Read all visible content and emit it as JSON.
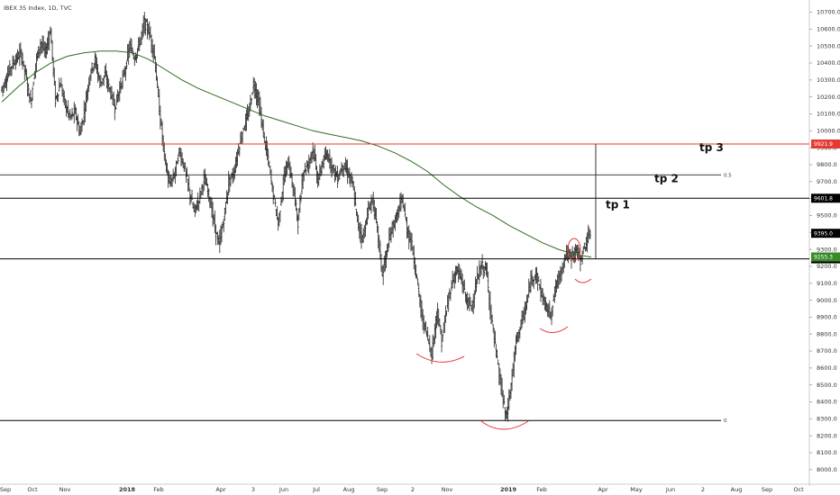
{
  "chart_data": {
    "type": "candlestick",
    "title": "IBEX 35 Index, 1D, TVC",
    "y_axis": {
      "ticks": [
        "10700.0",
        "10600.0",
        "10500.0",
        "10400.0",
        "10300.0",
        "10200.0",
        "10100.0",
        "10000.0",
        "9900.0",
        "9800.0",
        "9700.0",
        "9600.0",
        "9500.0",
        "9400.0",
        "9300.0",
        "9200.0",
        "9100.0",
        "9000.0",
        "8900.0",
        "8800.0",
        "8700.0",
        "8600.0",
        "8500.0",
        "8400.0",
        "8300.0",
        "8200.0",
        "8100.0",
        "8000.0"
      ],
      "ylim": [
        7930,
        10740
      ]
    },
    "x_axis": {
      "ticks": [
        {
          "label": "Sep",
          "bold": false
        },
        {
          "label": "Oct",
          "bold": false
        },
        {
          "label": "Nov",
          "bold": false
        },
        {
          "label": "2018",
          "bold": true
        },
        {
          "label": "Feb",
          "bold": false
        },
        {
          "label": "Apr",
          "bold": false
        },
        {
          "label": "3",
          "bold": false
        },
        {
          "label": "Jun",
          "bold": false
        },
        {
          "label": "Jul",
          "bold": false
        },
        {
          "label": "Aug",
          "bold": false
        },
        {
          "label": "Sep",
          "bold": false
        },
        {
          "label": "2",
          "bold": false
        },
        {
          "label": "Nov",
          "bold": false
        },
        {
          "label": "2019",
          "bold": true
        },
        {
          "label": "Feb",
          "bold": false
        },
        {
          "label": "Apr",
          "bold": false
        },
        {
          "label": "May",
          "bold": false
        },
        {
          "label": "Jun",
          "bold": false
        },
        {
          "label": "2",
          "bold": false
        },
        {
          "label": "Aug",
          "bold": false
        },
        {
          "label": "Sep",
          "bold": false
        },
        {
          "label": "Oct",
          "bold": false
        }
      ]
    },
    "price_path": [
      10240,
      10300,
      10380,
      10420,
      10460,
      10330,
      10160,
      10400,
      10520,
      10460,
      10600,
      10180,
      10280,
      10150,
      10080,
      10110,
      9980,
      10150,
      10340,
      10420,
      10280,
      10330,
      10240,
      10140,
      10250,
      10350,
      10500,
      10430,
      10520,
      10640,
      10580,
      10440,
      10120,
      9850,
      9680,
      9740,
      9880,
      9790,
      9650,
      9520,
      9600,
      9720,
      9620,
      9460,
      9320,
      9480,
      9700,
      9750,
      9900,
      10020,
      10100,
      10280,
      10180,
      9980,
      9820,
      9620,
      9450,
      9700,
      9820,
      9660,
      9460,
      9760,
      9800,
      9900,
      9700,
      9820,
      9860,
      9780,
      9720,
      9800,
      9760,
      9680,
      9460,
      9360,
      9510,
      9600,
      9420,
      9150,
      9300,
      9430,
      9500,
      9600,
      9420,
      9320,
      9120,
      8900,
      8800,
      8680,
      8940,
      8760,
      8950,
      9100,
      9180,
      9120,
      9000,
      8960,
      9100,
      9200,
      9180,
      8900,
      8680,
      8480,
      8300,
      8500,
      8760,
      8860,
      8960,
      9120,
      9160,
      9050,
      8960,
      8920,
      9080,
      9160,
      9280,
      9250,
      9300,
      9240,
      9330,
      9390
    ],
    "moving_average": [
      10170,
      10260,
      10340,
      10400,
      10440,
      10460,
      10470,
      10470,
      10460,
      10420,
      10360,
      10300,
      10250,
      10210,
      10170,
      10130,
      10090,
      10060,
      10030,
      10000,
      9980,
      9960,
      9940,
      9910,
      9870,
      9820,
      9760,
      9680,
      9610,
      9550,
      9500,
      9440,
      9390,
      9340,
      9300,
      9270,
      9255
    ],
    "annotations": {
      "horizontal_levels": [
        {
          "value": 9921.9,
          "label": "9921.9",
          "color": "#e53935",
          "text_color": "#ffffff"
        },
        {
          "value": 9601.8,
          "label": "9601.8",
          "color": "#000000",
          "text_color": "#ffffff"
        },
        {
          "value": 9244.3,
          "label": "9244.3",
          "color": "#000000",
          "text_color": "#ffffff"
        },
        {
          "value": 8290,
          "label": "0",
          "color": "#000000"
        },
        {
          "value": 9740,
          "label": "0.5",
          "color": "#000000"
        }
      ],
      "price_labels": [
        {
          "value": 9395.0,
          "label": "9395.0",
          "color": "#000000"
        },
        {
          "value": 9255.3,
          "label": "9255.3",
          "color": "#3a8a2a"
        }
      ],
      "targets": [
        "tp 1",
        "tp 2",
        "tp 3"
      ]
    },
    "colors": {
      "candles": "#000000",
      "moving_average": "#2e6b1f",
      "resistance": "#e53935",
      "arcs": "#e53935"
    }
  }
}
